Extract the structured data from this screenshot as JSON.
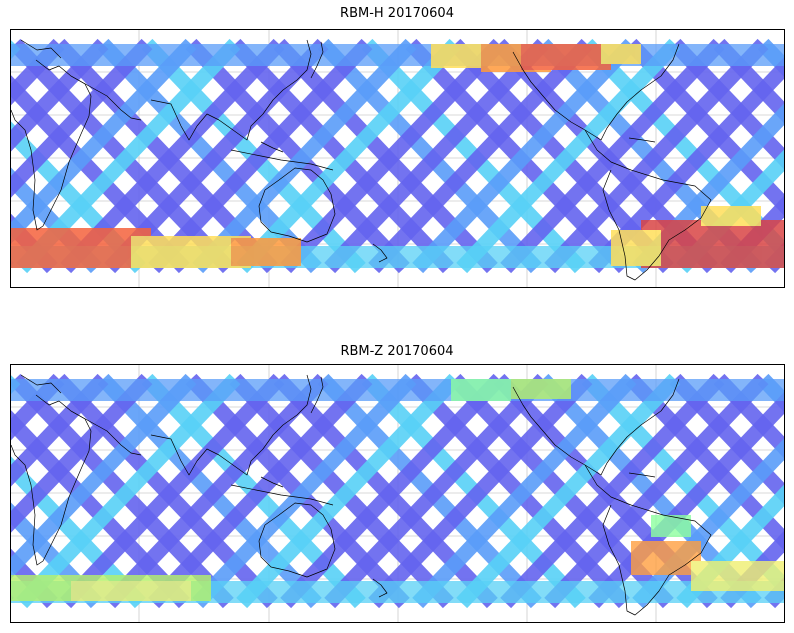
{
  "figure": {
    "panels": [
      {
        "id": "top",
        "title": "RBM-H 20170604",
        "accent_colors": [
          "#ff9a3c",
          "#f5623c",
          "#ffdf5a",
          "#d94545"
        ]
      },
      {
        "id": "bottom",
        "title": "RBM-Z 20170604",
        "accent_colors": [
          "#b6f26a",
          "#8dffa0",
          "#f0f070",
          "#ff9f40"
        ]
      }
    ]
  },
  "chart_data": {
    "type": "map",
    "projection": "equirectangular",
    "central_longitude": 180,
    "lat_range": [
      -60,
      60
    ],
    "lon_range": [
      0,
      360
    ],
    "gridlines": true,
    "colormap": "jet",
    "panels": [
      {
        "title": "RBM-H 20170604",
        "date": "20170604",
        "quantity": "RBM-H"
      },
      {
        "title": "RBM-Z 20170604",
        "date": "20170604",
        "quantity": "RBM-Z"
      }
    ]
  },
  "palette": {
    "track_dark": "#6464ee",
    "track_mid": "#5a9cf8",
    "track_light": "#58d0f6",
    "coastline": "#000000",
    "gridline": "#cccccc"
  }
}
